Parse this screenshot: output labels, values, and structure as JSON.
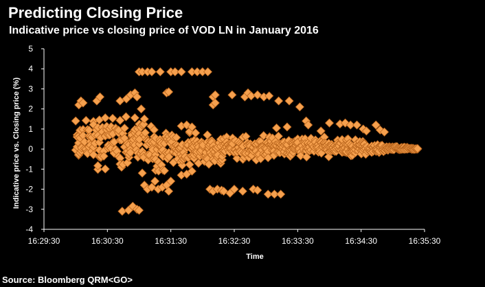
{
  "chart_data": {
    "type": "scatter",
    "title": "Predicting Closing Price",
    "subtitle": "Indicative price vs closing price of VOD LN in January 2016",
    "xlabel": "Time",
    "ylabel": "Indicative price vs. Closing price (%)",
    "xlim": [
      "16:29:30",
      "16:35:30"
    ],
    "ylim": [
      -4,
      5
    ],
    "x_ticks": [
      "16:29:30",
      "16:30:30",
      "16:31:30",
      "16:32:30",
      "16:33:30",
      "16:34:30",
      "16:35:30"
    ],
    "y_ticks": [
      5,
      4,
      3,
      2,
      1,
      0,
      -1,
      -2,
      -3,
      -4
    ],
    "grid": false,
    "legend": "none",
    "marker": "diamond",
    "colors": {
      "marker": "#f5a04e",
      "marker_edge": "#b8641c",
      "axis": "#ffffff",
      "background": "#000000"
    },
    "series": [
      {
        "points": [
          [
            "16:30:03",
            2.2
          ],
          [
            "16:30:05",
            2.4
          ],
          [
            "16:30:07",
            2.3
          ],
          [
            "16:30:20",
            2.4
          ],
          [
            "16:30:23",
            2.6
          ],
          [
            "16:30:42",
            2.4
          ],
          [
            "16:30:48",
            2.5
          ],
          [
            "16:30:52",
            2.7
          ],
          [
            "16:30:56",
            2.8
          ],
          [
            "16:30:58",
            2.6
          ],
          [
            "16:31:00",
            3.85
          ],
          [
            "16:31:03",
            3.85
          ],
          [
            "16:31:08",
            3.85
          ],
          [
            "16:31:12",
            3.85
          ],
          [
            "16:31:20",
            3.85
          ],
          [
            "16:31:30",
            3.85
          ],
          [
            "16:31:34",
            3.85
          ],
          [
            "16:31:40",
            3.85
          ],
          [
            "16:31:50",
            3.85
          ],
          [
            "16:31:55",
            3.85
          ],
          [
            "16:32:00",
            3.85
          ],
          [
            "16:32:05",
            3.85
          ],
          [
            "16:31:26",
            2.8
          ],
          [
            "16:31:28",
            2.85
          ],
          [
            "16:32:10",
            2.6
          ],
          [
            "16:32:12",
            2.7
          ],
          [
            "16:32:10",
            2.2
          ],
          [
            "16:32:12",
            2.3
          ],
          [
            "16:32:28",
            2.7
          ],
          [
            "16:32:40",
            2.6
          ],
          [
            "16:32:43",
            2.8
          ],
          [
            "16:32:46",
            2.65
          ],
          [
            "16:32:52",
            2.7
          ],
          [
            "16:32:58",
            2.6
          ],
          [
            "16:33:03",
            2.65
          ],
          [
            "16:33:12",
            2.4
          ],
          [
            "16:33:22",
            2.4
          ],
          [
            "16:33:32",
            2.1
          ],
          [
            "16:31:02",
            2.0
          ],
          [
            "16:31:05",
            1.5
          ],
          [
            "16:30:44",
            -3.1
          ],
          [
            "16:30:50",
            -3.05
          ],
          [
            "16:30:54",
            -2.85
          ],
          [
            "16:30:58",
            -3.0
          ],
          [
            "16:31:00",
            -3.05
          ],
          [
            "16:31:05",
            -1.8
          ],
          [
            "16:31:08",
            -2.0
          ],
          [
            "16:31:12",
            -1.9
          ],
          [
            "16:31:15",
            -1.6
          ],
          [
            "16:31:18",
            -2.0
          ],
          [
            "16:31:22",
            -1.9
          ],
          [
            "16:31:26",
            -1.8
          ],
          [
            "16:31:28",
            -2.1
          ],
          [
            "16:31:30",
            -1.6
          ],
          [
            "16:31:40",
            -1.3
          ],
          [
            "16:31:45",
            -1.25
          ],
          [
            "16:31:50",
            -1.1
          ],
          [
            "16:32:07",
            -2.0
          ],
          [
            "16:32:10",
            -2.1
          ],
          [
            "16:32:14",
            -2.0
          ],
          [
            "16:32:18",
            -2.05
          ],
          [
            "16:32:20",
            -2.1
          ],
          [
            "16:32:26",
            -2.2
          ],
          [
            "16:32:30",
            -2.0
          ],
          [
            "16:32:38",
            -2.1
          ],
          [
            "16:32:48",
            -2.0
          ],
          [
            "16:32:52",
            -2.05
          ],
          [
            "16:33:02",
            -2.25
          ],
          [
            "16:33:08",
            -2.25
          ],
          [
            "16:33:14",
            -2.25
          ],
          [
            "16:31:40",
            1.15
          ],
          [
            "16:31:45",
            1.2
          ],
          [
            "16:31:50",
            1.1
          ],
          [
            "16:33:38",
            1.4
          ],
          [
            "16:33:40",
            1.2
          ],
          [
            "16:33:52",
            0.9
          ],
          [
            "16:34:00",
            1.3
          ],
          [
            "16:34:10",
            1.25
          ],
          [
            "16:34:15",
            1.3
          ],
          [
            "16:34:20",
            1.2
          ],
          [
            "16:34:26",
            1.2
          ],
          [
            "16:34:32",
            1.0
          ],
          [
            "16:34:35",
            0.9
          ],
          [
            "16:34:44",
            1.2
          ],
          [
            "16:34:48",
            0.95
          ],
          [
            "16:34:52",
            0.85
          ],
          [
            "16:33:20",
            1.1
          ],
          [
            "16:33:10",
            1.05
          ]
        ]
      }
    ],
    "band": {
      "start": "16:30:00",
      "end": "16:35:30",
      "step_seconds": 1.4,
      "envelope": [
        [
          "16:30:00",
          -0.9,
          1.6
        ],
        [
          "16:30:30",
          -1.1,
          1.8
        ],
        [
          "16:31:00",
          -1.2,
          1.6
        ],
        [
          "16:31:30",
          -1.2,
          1.0
        ],
        [
          "16:32:00",
          -0.8,
          0.8
        ],
        [
          "16:32:30",
          -0.65,
          0.65
        ],
        [
          "16:33:00",
          -0.55,
          0.7
        ],
        [
          "16:33:30",
          -0.45,
          0.7
        ],
        [
          "16:34:00",
          -0.4,
          0.6
        ],
        [
          "16:34:30",
          -0.3,
          0.45
        ],
        [
          "16:35:00",
          -0.1,
          0.15
        ],
        [
          "16:35:30",
          -0.02,
          0.02
        ]
      ]
    }
  },
  "source": "Source: Bloomberg QRM<GO>"
}
